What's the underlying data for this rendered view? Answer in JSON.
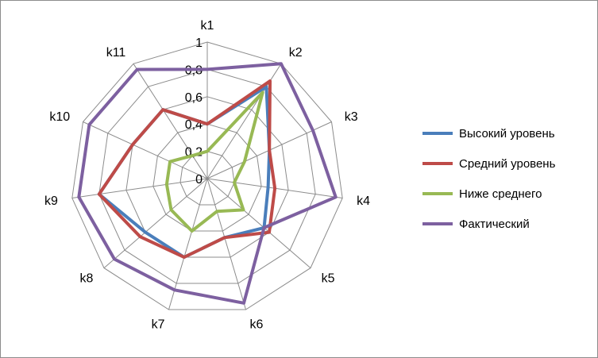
{
  "chart_data": {
    "type": "radar",
    "categories": [
      "k1",
      "k2",
      "k3",
      "k4",
      "k5",
      "k6",
      "k7",
      "k8",
      "k9",
      "k10",
      "k11"
    ],
    "rlim": [
      0,
      1
    ],
    "ticks": [
      {
        "value": 0,
        "label": "0"
      },
      {
        "value": 0.2,
        "label": "0,2"
      },
      {
        "value": 0.4,
        "label": "0,4"
      },
      {
        "value": 0.6,
        "label": "0,6"
      },
      {
        "value": 0.8,
        "label": "0,8"
      },
      {
        "value": 1,
        "label": "1"
      }
    ],
    "grid": true,
    "legend_position": "right",
    "series": [
      {
        "name": "Высокий уровень",
        "color": "#4a7ebb",
        "values": [
          0.4,
          0.8,
          0.5,
          0.45,
          0.55,
          0.45,
          0.6,
          0.6,
          0.8,
          0.6,
          0.6
        ]
      },
      {
        "name": "Средний уровень",
        "color": "#be4b48",
        "values": [
          0.4,
          0.85,
          0.5,
          0.5,
          0.6,
          0.45,
          0.6,
          0.65,
          0.8,
          0.6,
          0.6
        ]
      },
      {
        "name": "Ниже среднего",
        "color": "#98b954",
        "values": [
          0.2,
          0.75,
          0.3,
          0.2,
          0.35,
          0.25,
          0.4,
          0.35,
          0.3,
          0.3,
          0.2
        ]
      },
      {
        "name": "Фактический",
        "color": "#7d60a0",
        "values": [
          0.8,
          1.0,
          0.85,
          0.95,
          0.55,
          0.95,
          0.85,
          0.9,
          0.95,
          0.95,
          0.95
        ]
      }
    ]
  }
}
